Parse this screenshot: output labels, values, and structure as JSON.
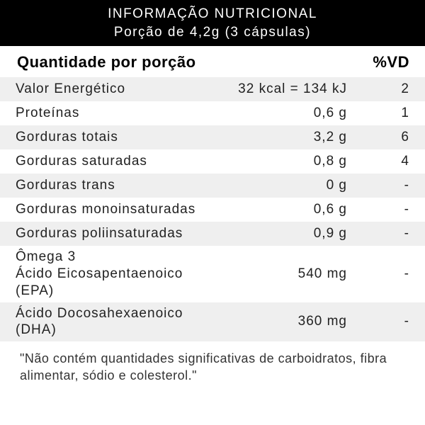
{
  "header": {
    "title": "INFORMAÇÃO NUTRICIONAL",
    "serving": "Porção de 4,2g (3 cápsulas)"
  },
  "columns": {
    "qty": "Quantidade por porção",
    "dv": "%VD"
  },
  "rows": [
    {
      "name": "Valor Energético",
      "value": "32 kcal = 134 kJ",
      "dv": "2"
    },
    {
      "name": "Proteínas",
      "value": "0,6 g",
      "dv": "1"
    },
    {
      "name": "Gorduras totais",
      "value": "3,2 g",
      "dv": "6"
    },
    {
      "name": "Gorduras saturadas",
      "value": "0,8 g",
      "dv": "4"
    },
    {
      "name": "Gorduras trans",
      "value": "0 g",
      "dv": "-"
    },
    {
      "name": "Gorduras monoinsaturadas",
      "value": "0,6 g",
      "dv": "-"
    },
    {
      "name": "Gorduras poliinsaturadas",
      "value": "0,9 g",
      "dv": "-"
    },
    {
      "name": "Ômega 3\nÁcido Eicosapentaenoico (EPA)",
      "value": "540 mg",
      "dv": "-"
    },
    {
      "name": "Ácido Docosahexaenoico (DHA)",
      "value": "360 mg",
      "dv": "-"
    }
  ],
  "footnote": "\"Não contém quantidades significativas de carboidratos, fibra alimentar, sódio e colesterol.\"",
  "style": {
    "type": "table",
    "header_bg": "#000000",
    "header_fg": "#ffffff",
    "row_alt_bg": "#efefef",
    "row_bg": "#ffffff",
    "text_color": "#222222",
    "font_family": "Arial",
    "title_fontsize": 19,
    "colhead_fontsize": 22,
    "row_fontsize": 19,
    "footnote_fontsize": 18,
    "col_widths": {
      "name": 280,
      "dv": 80
    }
  }
}
